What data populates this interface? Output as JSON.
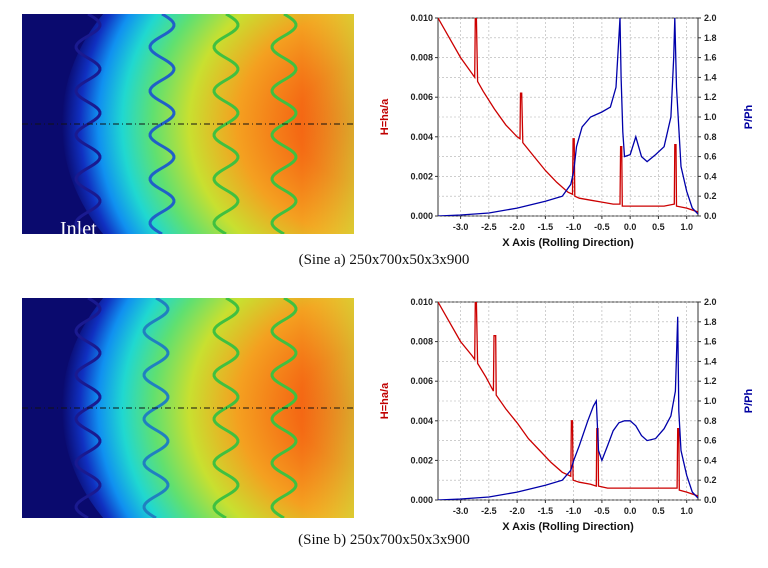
{
  "panels": [
    {
      "id": "sine-a",
      "caption": "(Sine a) 250x700x50x3x900",
      "heatmap_label": "Inlet"
    },
    {
      "id": "sine-b",
      "caption": "(Sine b) 250x700x50x3x900",
      "heatmap_label": ""
    }
  ],
  "colors": {
    "h_curve": "#cc0000",
    "p_curve": "#0000aa",
    "grid": "#b0b0b0",
    "heat_dark": "#0a0a6e",
    "heat_hot": "#f05010"
  },
  "chart_data": [
    {
      "type": "line",
      "xlabel": "X Axis (Rolling Direction)",
      "ylabel_left": "H=ha/a",
      "ylabel_right": "P/Ph",
      "xlim": [
        -3.4,
        1.2
      ],
      "ylim_left": [
        0,
        0.01
      ],
      "ylim_right": [
        0,
        2.0
      ],
      "x_ticks": [
        "-3.0",
        "-2.5",
        "-2.0",
        "-1.5",
        "-1.0",
        "-0.5",
        "0.0",
        "0.5",
        "1.0"
      ],
      "y_ticks_left": [
        "0.000",
        "0.002",
        "0.004",
        "0.006",
        "0.008",
        "0.010"
      ],
      "y_ticks_right": [
        "0.0",
        "0.2",
        "0.4",
        "0.6",
        "0.8",
        "1.0",
        "1.2",
        "1.4",
        "1.6",
        "1.8",
        "2.0"
      ],
      "grid": true,
      "series": [
        {
          "name": "H=ha/a",
          "axis": "left",
          "x": [
            -3.4,
            -3.2,
            -3.0,
            -2.8,
            -2.75,
            -2.74,
            -2.72,
            -2.7,
            -2.6,
            -2.4,
            -2.2,
            -2.0,
            -1.95,
            -1.94,
            -1.92,
            -1.9,
            -1.7,
            -1.5,
            -1.3,
            -1.1,
            -1.02,
            -1.01,
            -0.99,
            -0.98,
            -0.9,
            -0.7,
            -0.5,
            -0.3,
            -0.18,
            -0.17,
            -0.15,
            -0.14,
            0.0,
            0.3,
            0.6,
            0.78,
            0.79,
            0.81,
            0.82,
            1.0,
            1.2
          ],
          "y": [
            0.01,
            0.009,
            0.008,
            0.0072,
            0.007,
            0.01,
            0.01,
            0.0068,
            0.0063,
            0.0054,
            0.0046,
            0.004,
            0.0039,
            0.0062,
            0.0062,
            0.0037,
            0.003,
            0.0023,
            0.0017,
            0.0012,
            0.0011,
            0.0039,
            0.0039,
            0.001,
            0.0009,
            0.0008,
            0.0007,
            0.0006,
            0.0006,
            0.0035,
            0.0035,
            0.0005,
            0.0005,
            0.0005,
            0.0005,
            0.0006,
            0.0036,
            0.0036,
            0.0005,
            0.0004,
            0.0002
          ]
        },
        {
          "name": "P/Ph",
          "axis": "right",
          "x": [
            -3.4,
            -3.0,
            -2.5,
            -2.0,
            -1.5,
            -1.2,
            -1.05,
            -1.0,
            -0.95,
            -0.85,
            -0.7,
            -0.5,
            -0.35,
            -0.25,
            -0.18,
            -0.16,
            -0.13,
            -0.1,
            0.0,
            0.1,
            0.2,
            0.3,
            0.45,
            0.6,
            0.72,
            0.77,
            0.79,
            0.82,
            0.9,
            1.0,
            1.1,
            1.2
          ],
          "y": [
            0.0,
            0.01,
            0.03,
            0.08,
            0.15,
            0.2,
            0.32,
            0.45,
            0.7,
            0.9,
            1.0,
            1.05,
            1.1,
            1.3,
            2.0,
            1.4,
            0.85,
            0.6,
            0.62,
            0.8,
            0.6,
            0.55,
            0.62,
            0.7,
            1.0,
            1.6,
            2.0,
            1.3,
            0.5,
            0.25,
            0.08,
            0.02
          ]
        }
      ]
    },
    {
      "type": "line",
      "xlabel": "X Axis (Rolling Direction)",
      "ylabel_left": "H=ha/a",
      "ylabel_right": "P/Ph",
      "xlim": [
        -3.4,
        1.2
      ],
      "ylim_left": [
        0,
        0.01
      ],
      "ylim_right": [
        0,
        2.0
      ],
      "x_ticks": [
        "-3.0",
        "-2.5",
        "-2.0",
        "-1.5",
        "-1.0",
        "-0.5",
        "0.0",
        "0.5",
        "1.0"
      ],
      "y_ticks_left": [
        "0.000",
        "0.002",
        "0.004",
        "0.006",
        "0.008",
        "0.010"
      ],
      "y_ticks_right": [
        "0.0",
        "0.2",
        "0.4",
        "0.6",
        "0.8",
        "1.0",
        "1.2",
        "1.4",
        "1.6",
        "1.8",
        "2.0"
      ],
      "grid": true,
      "series": [
        {
          "name": "H=ha/a",
          "axis": "left",
          "x": [
            -3.4,
            -3.2,
            -3.0,
            -2.8,
            -2.75,
            -2.74,
            -2.72,
            -2.7,
            -2.55,
            -2.42,
            -2.41,
            -2.38,
            -2.37,
            -2.2,
            -2.0,
            -1.8,
            -1.6,
            -1.4,
            -1.2,
            -1.05,
            -1.04,
            -1.02,
            -1.01,
            -0.9,
            -0.7,
            -0.6,
            -0.59,
            -0.57,
            -0.56,
            -0.4,
            -0.2,
            0.0,
            0.3,
            0.6,
            0.83,
            0.84,
            0.86,
            0.87,
            1.0,
            1.2
          ],
          "y": [
            0.01,
            0.009,
            0.008,
            0.0073,
            0.0071,
            0.01,
            0.01,
            0.0069,
            0.0062,
            0.0055,
            0.0083,
            0.0083,
            0.0053,
            0.0046,
            0.0039,
            0.0031,
            0.0025,
            0.0019,
            0.0014,
            0.0012,
            0.004,
            0.004,
            0.001,
            0.0009,
            0.0008,
            0.0007,
            0.0036,
            0.0036,
            0.0007,
            0.0006,
            0.0006,
            0.0006,
            0.0006,
            0.0006,
            0.0006,
            0.0036,
            0.0036,
            0.0005,
            0.0004,
            0.0002
          ]
        },
        {
          "name": "P/Ph",
          "axis": "right",
          "x": [
            -3.4,
            -3.0,
            -2.5,
            -2.0,
            -1.5,
            -1.2,
            -1.05,
            -1.0,
            -0.9,
            -0.75,
            -0.65,
            -0.6,
            -0.56,
            -0.5,
            -0.4,
            -0.3,
            -0.2,
            -0.1,
            0.0,
            0.1,
            0.2,
            0.3,
            0.45,
            0.6,
            0.72,
            0.8,
            0.84,
            0.86,
            0.9,
            1.0,
            1.1,
            1.2
          ],
          "y": [
            0.0,
            0.01,
            0.03,
            0.08,
            0.15,
            0.2,
            0.3,
            0.4,
            0.55,
            0.8,
            0.95,
            1.0,
            0.5,
            0.4,
            0.55,
            0.7,
            0.78,
            0.8,
            0.8,
            0.75,
            0.65,
            0.6,
            0.62,
            0.72,
            0.85,
            1.1,
            1.85,
            0.9,
            0.5,
            0.25,
            0.08,
            0.02
          ]
        }
      ]
    }
  ]
}
